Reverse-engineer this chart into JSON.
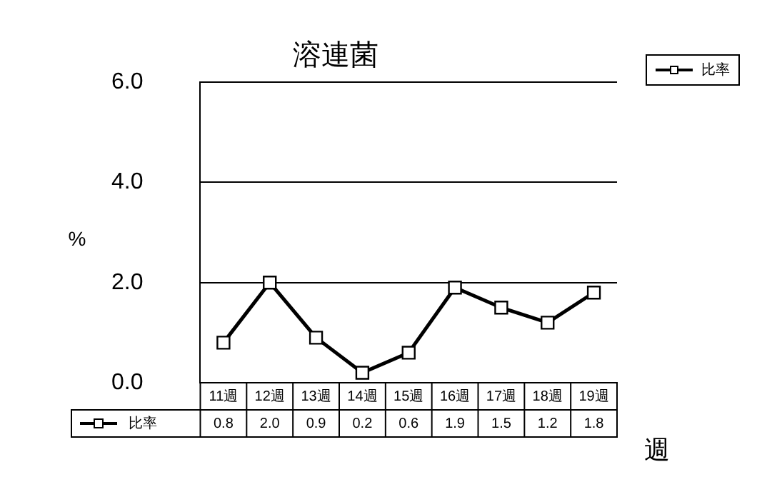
{
  "chart_data": {
    "type": "line",
    "title": "溶連菌",
    "xlabel": "週",
    "ylabel": "%",
    "categories": [
      "11週",
      "12週",
      "13週",
      "14週",
      "15週",
      "16週",
      "17週",
      "18週",
      "19週"
    ],
    "series": [
      {
        "name": "比率",
        "color": "#000000",
        "values": [
          0.8,
          2.0,
          0.9,
          0.2,
          0.6,
          1.9,
          1.5,
          1.2,
          1.8
        ],
        "value_labels": [
          "0.8",
          "2.0",
          "0.9",
          "0.2",
          "0.6",
          "1.9",
          "1.5",
          "1.2",
          "1.8"
        ]
      }
    ],
    "ylim": [
      0,
      6
    ],
    "yticks": [
      {
        "value": 0,
        "label": "0.0"
      },
      {
        "value": 2,
        "label": "2.0"
      },
      {
        "value": 4,
        "label": "4.0"
      },
      {
        "value": 6,
        "label": "6.0"
      }
    ],
    "grid": "y",
    "legend": "bottom left",
    "marker": "square",
    "line_style": "solid"
  }
}
